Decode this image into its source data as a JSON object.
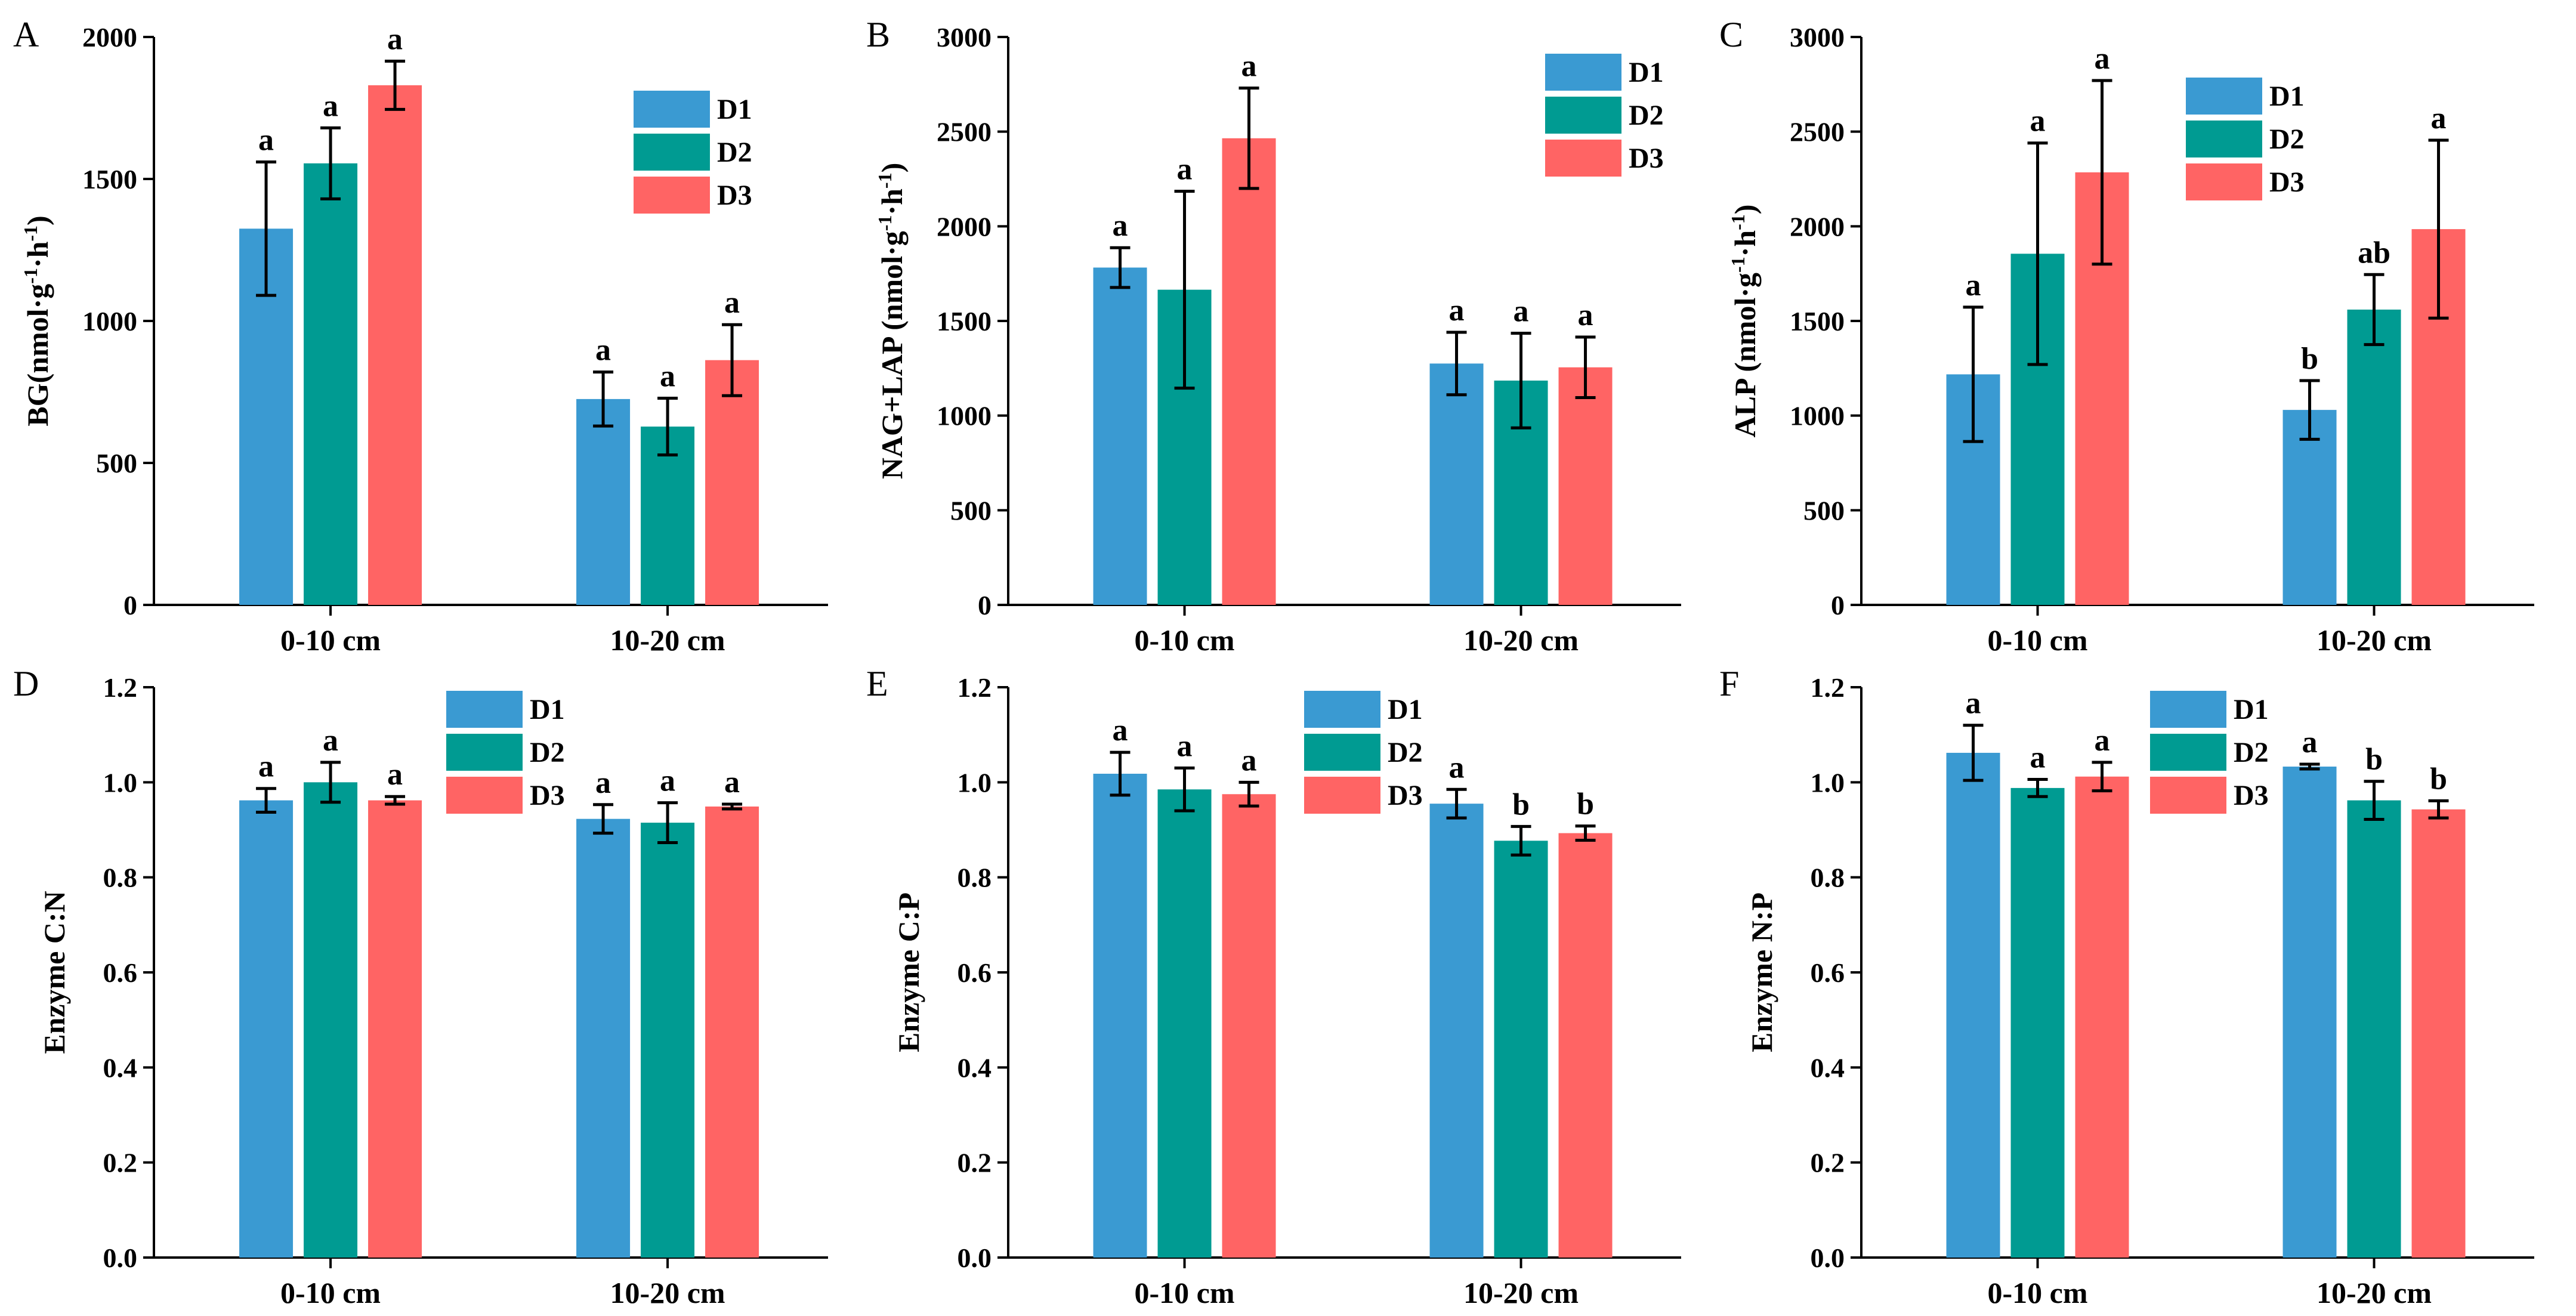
{
  "colors": {
    "D1": "#3a9ad2",
    "D2": "#009b92",
    "D3": "#ff6464"
  },
  "chart_data": [
    {
      "panel": "A",
      "type": "bar",
      "ylabel_parts": [
        "BG(nmol·g",
        "-1",
        "·h",
        "-1",
        ")"
      ],
      "ylim": [
        0,
        2000
      ],
      "yticks": [
        "0",
        "500",
        "1000",
        "1500",
        "2000"
      ],
      "ytick_values": [
        0,
        500,
        1000,
        1500,
        2000
      ],
      "categories": [
        "0-10 cm",
        "10-20 cm"
      ],
      "legend": [
        "D1",
        "D2",
        "D3"
      ],
      "series": [
        {
          "name": "D1",
          "values": [
            1325,
            725
          ],
          "errors": [
            235,
            95
          ],
          "sig": [
            "a",
            "a"
          ]
        },
        {
          "name": "D2",
          "values": [
            1555,
            628
          ],
          "errors": [
            125,
            100
          ],
          "sig": [
            "a",
            "a"
          ]
        },
        {
          "name": "D3",
          "values": [
            1830,
            862
          ],
          "errors": [
            85,
            125
          ],
          "sig": [
            "a",
            "a"
          ]
        }
      ]
    },
    {
      "panel": "B",
      "type": "bar",
      "ylabel_parts": [
        "NAG+LAP (nmol·g",
        "-1",
        "·h",
        "-1",
        ")"
      ],
      "ylim": [
        0,
        3000
      ],
      "yticks": [
        "0",
        "500",
        "1000",
        "1500",
        "2000",
        "2500",
        "3000"
      ],
      "ytick_values": [
        0,
        500,
        1000,
        1500,
        2000,
        2500,
        3000
      ],
      "categories": [
        "0-10 cm",
        "10-20 cm"
      ],
      "legend": [
        "D1",
        "D2",
        "D3"
      ],
      "series": [
        {
          "name": "D1",
          "values": [
            1782,
            1275
          ],
          "errors": [
            105,
            165
          ],
          "sig": [
            "a",
            "a"
          ]
        },
        {
          "name": "D2",
          "values": [
            1665,
            1185
          ],
          "errors": [
            520,
            250
          ],
          "sig": [
            "a",
            "a"
          ]
        },
        {
          "name": "D3",
          "values": [
            2465,
            1255
          ],
          "errors": [
            265,
            160
          ],
          "sig": [
            "a",
            "a"
          ]
        }
      ]
    },
    {
      "panel": "C",
      "type": "bar",
      "ylabel_parts": [
        "ALP (nmol·g",
        "-1",
        "·h",
        "-1",
        ")"
      ],
      "ylim": [
        0,
        3000
      ],
      "yticks": [
        "0",
        "500",
        "1000",
        "1500",
        "2000",
        "2500",
        "3000"
      ],
      "ytick_values": [
        0,
        500,
        1000,
        1500,
        2000,
        2500,
        3000
      ],
      "categories": [
        "0-10 cm",
        "10-20 cm"
      ],
      "legend": [
        "D1",
        "D2",
        "D3"
      ],
      "series": [
        {
          "name": "D1",
          "values": [
            1218,
            1030
          ],
          "errors": [
            355,
            155
          ],
          "sig": [
            "a",
            "b"
          ]
        },
        {
          "name": "D2",
          "values": [
            1855,
            1560
          ],
          "errors": [
            585,
            185
          ],
          "sig": [
            "a",
            "ab"
          ]
        },
        {
          "name": "D3",
          "values": [
            2285,
            1985
          ],
          "errors": [
            485,
            470
          ],
          "sig": [
            "a",
            "a"
          ]
        }
      ]
    },
    {
      "panel": "D",
      "type": "bar",
      "ylabel_parts": [
        "Enzyme C:N"
      ],
      "ylim": [
        0,
        1.2
      ],
      "yticks": [
        "0.0",
        "0.2",
        "0.4",
        "0.6",
        "0.8",
        "1.0",
        "1.2"
      ],
      "ytick_values": [
        0,
        0.2,
        0.4,
        0.6,
        0.8,
        1.0,
        1.2
      ],
      "categories": [
        "0-10 cm",
        "10-20 cm"
      ],
      "legend": [
        "D1",
        "D2",
        "D3"
      ],
      "series": [
        {
          "name": "D1",
          "values": [
            0.962,
            0.923
          ],
          "errors": [
            0.025,
            0.03
          ],
          "sig": [
            "a",
            "a"
          ]
        },
        {
          "name": "D2",
          "values": [
            1.0,
            0.915
          ],
          "errors": [
            0.042,
            0.042
          ],
          "sig": [
            "a",
            "a"
          ]
        },
        {
          "name": "D3",
          "values": [
            0.962,
            0.949
          ],
          "errors": [
            0.008,
            0.005
          ],
          "sig": [
            "a",
            "a"
          ]
        }
      ]
    },
    {
      "panel": "E",
      "type": "bar",
      "ylabel_parts": [
        "Enzyme C:P"
      ],
      "ylim": [
        0,
        1.2
      ],
      "yticks": [
        "0.0",
        "0.2",
        "0.4",
        "0.6",
        "0.8",
        "1.0",
        "1.2"
      ],
      "ytick_values": [
        0,
        0.2,
        0.4,
        0.6,
        0.8,
        1.0,
        1.2
      ],
      "categories": [
        "0-10 cm",
        "10-20 cm"
      ],
      "legend": [
        "D1",
        "D2",
        "D3"
      ],
      "series": [
        {
          "name": "D1",
          "values": [
            1.018,
            0.955
          ],
          "errors": [
            0.045,
            0.03
          ],
          "sig": [
            "a",
            "a"
          ]
        },
        {
          "name": "D2",
          "values": [
            0.985,
            0.877
          ],
          "errors": [
            0.045,
            0.03
          ],
          "sig": [
            "a",
            "b"
          ]
        },
        {
          "name": "D3",
          "values": [
            0.975,
            0.893
          ],
          "errors": [
            0.025,
            0.015
          ],
          "sig": [
            "a",
            "b"
          ]
        }
      ]
    },
    {
      "panel": "F",
      "type": "bar",
      "ylabel_parts": [
        "Enzyme N:P"
      ],
      "ylim": [
        0,
        1.2
      ],
      "yticks": [
        "0.0",
        "0.2",
        "0.4",
        "0.6",
        "0.8",
        "1.0",
        "1.2"
      ],
      "ytick_values": [
        0,
        0.2,
        0.4,
        0.6,
        0.8,
        1.0,
        1.2
      ],
      "categories": [
        "0-10 cm",
        "10-20 cm"
      ],
      "legend": [
        "D1",
        "D2",
        "D3"
      ],
      "series": [
        {
          "name": "D1",
          "values": [
            1.062,
            1.033
          ],
          "errors": [
            0.058,
            0.005
          ],
          "sig": [
            "a",
            "a"
          ]
        },
        {
          "name": "D2",
          "values": [
            0.988,
            0.962
          ],
          "errors": [
            0.018,
            0.04
          ],
          "sig": [
            "a",
            "b"
          ]
        },
        {
          "name": "D3",
          "values": [
            1.012,
            0.943
          ],
          "errors": [
            0.03,
            0.018
          ],
          "sig": [
            "a",
            "b"
          ]
        }
      ]
    }
  ]
}
